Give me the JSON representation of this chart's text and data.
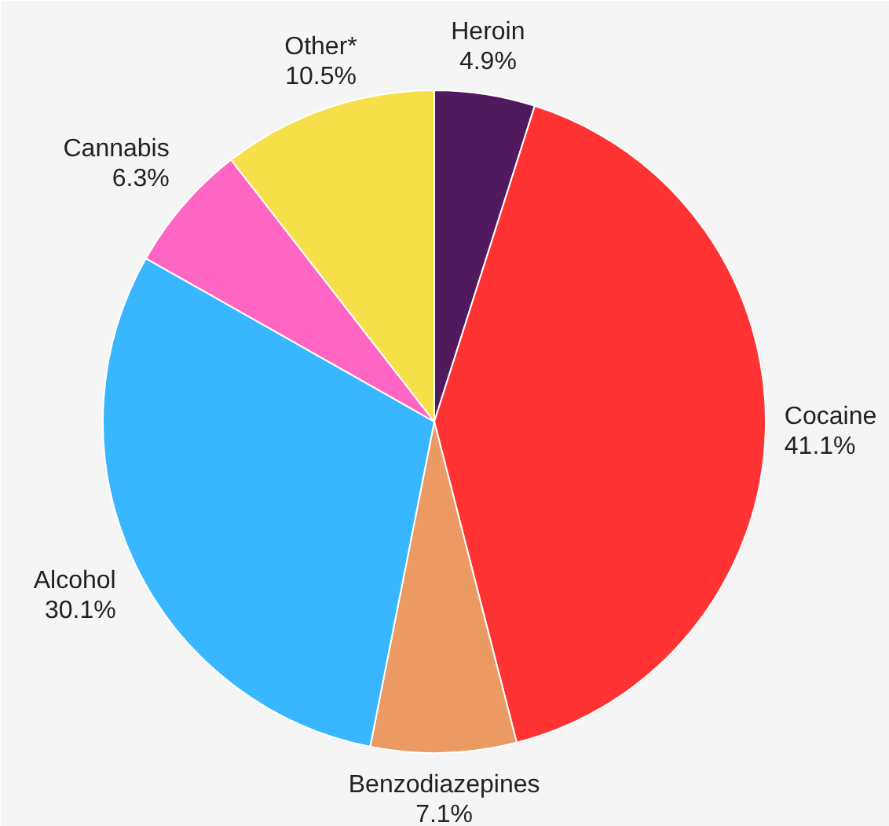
{
  "chart_data": {
    "type": "pie",
    "categories": [
      "Heroin",
      "Cocaine",
      "Benzodiazepines",
      "Alcohol",
      "Cannabis",
      "Other*"
    ],
    "values": [
      4.9,
      41.1,
      7.1,
      30.1,
      6.3,
      10.5
    ],
    "value_labels": [
      "4.9%",
      "41.1%",
      "7.1%",
      "30.1%",
      "6.3%",
      "10.5%"
    ],
    "colors": [
      "#521a5e",
      "#ff3333",
      "#ec9a63",
      "#38b6ff",
      "#ff66c4",
      "#f7df4a"
    ]
  }
}
